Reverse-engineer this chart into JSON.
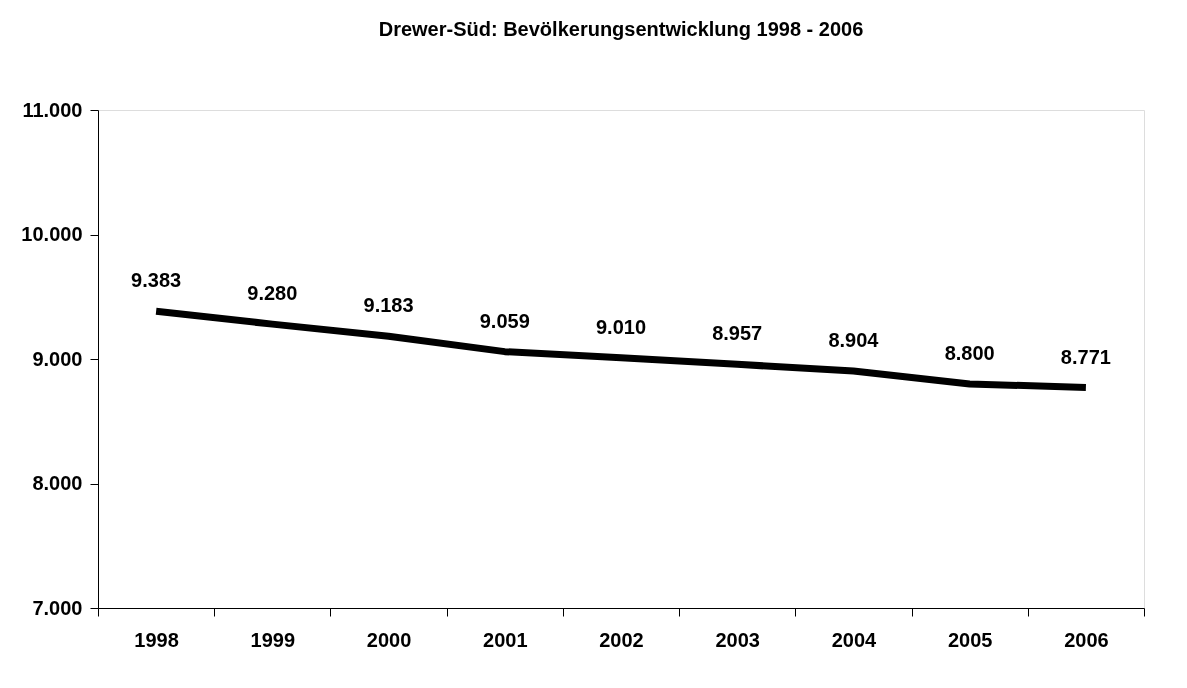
{
  "chart_data": {
    "type": "line",
    "title": "Drewer-Süd:  Bevölkerungsentwicklung 1998 - 2006",
    "categories": [
      "1998",
      "1999",
      "2000",
      "2001",
      "2002",
      "2003",
      "2004",
      "2005",
      "2006"
    ],
    "series": [
      {
        "color": "#000000",
        "values": [
          9383,
          9280,
          9183,
          9059,
          9010,
          8957,
          8904,
          8800,
          8771
        ],
        "value_labels": [
          "9.383",
          "9.280",
          "9.183",
          "9.059",
          "9.010",
          "8.957",
          "8.904",
          "8.800",
          "8.771"
        ]
      }
    ],
    "ylim": [
      7000,
      11000
    ],
    "yticks": [
      {
        "value": 7000,
        "label": "7.000"
      },
      {
        "value": 8000,
        "label": "8.000"
      },
      {
        "value": 9000,
        "label": "9.000"
      },
      {
        "value": 10000,
        "label": "10.000"
      },
      {
        "value": 11000,
        "label": "11.000"
      }
    ],
    "grid": false,
    "marker": "none",
    "line_style": "solid"
  }
}
